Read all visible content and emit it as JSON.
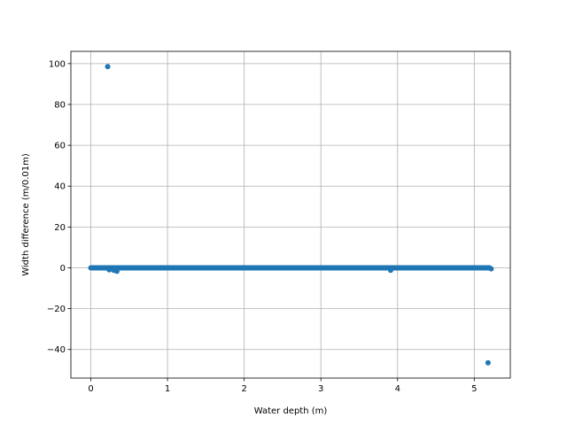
{
  "chart_data": {
    "type": "scatter",
    "title": "",
    "xlabel": "Water depth (m)",
    "ylabel": "Width difference (m/0.01m)",
    "xlim": [
      -0.26,
      5.47
    ],
    "ylim": [
      -54,
      106
    ],
    "xticks": [
      0,
      1,
      2,
      3,
      4,
      5
    ],
    "yticks": [
      -40,
      -20,
      0,
      20,
      40,
      60,
      80,
      100
    ],
    "grid": true,
    "legend": "none",
    "marker_color": "#1f77b4",
    "series": [
      {
        "dense_x_range": [
          0.0,
          5.2
        ],
        "dense_x_step": 0.01,
        "dense_y": 0.0,
        "outliers": [
          {
            "x": 0.22,
            "y": 98.5
          },
          {
            "x": 0.24,
            "y": -1.0
          },
          {
            "x": 0.3,
            "y": -1.2
          },
          {
            "x": 0.34,
            "y": -1.7
          },
          {
            "x": 3.91,
            "y": -1.2
          },
          {
            "x": 5.18,
            "y": -46.5
          },
          {
            "x": 5.22,
            "y": -0.5
          }
        ]
      }
    ]
  }
}
